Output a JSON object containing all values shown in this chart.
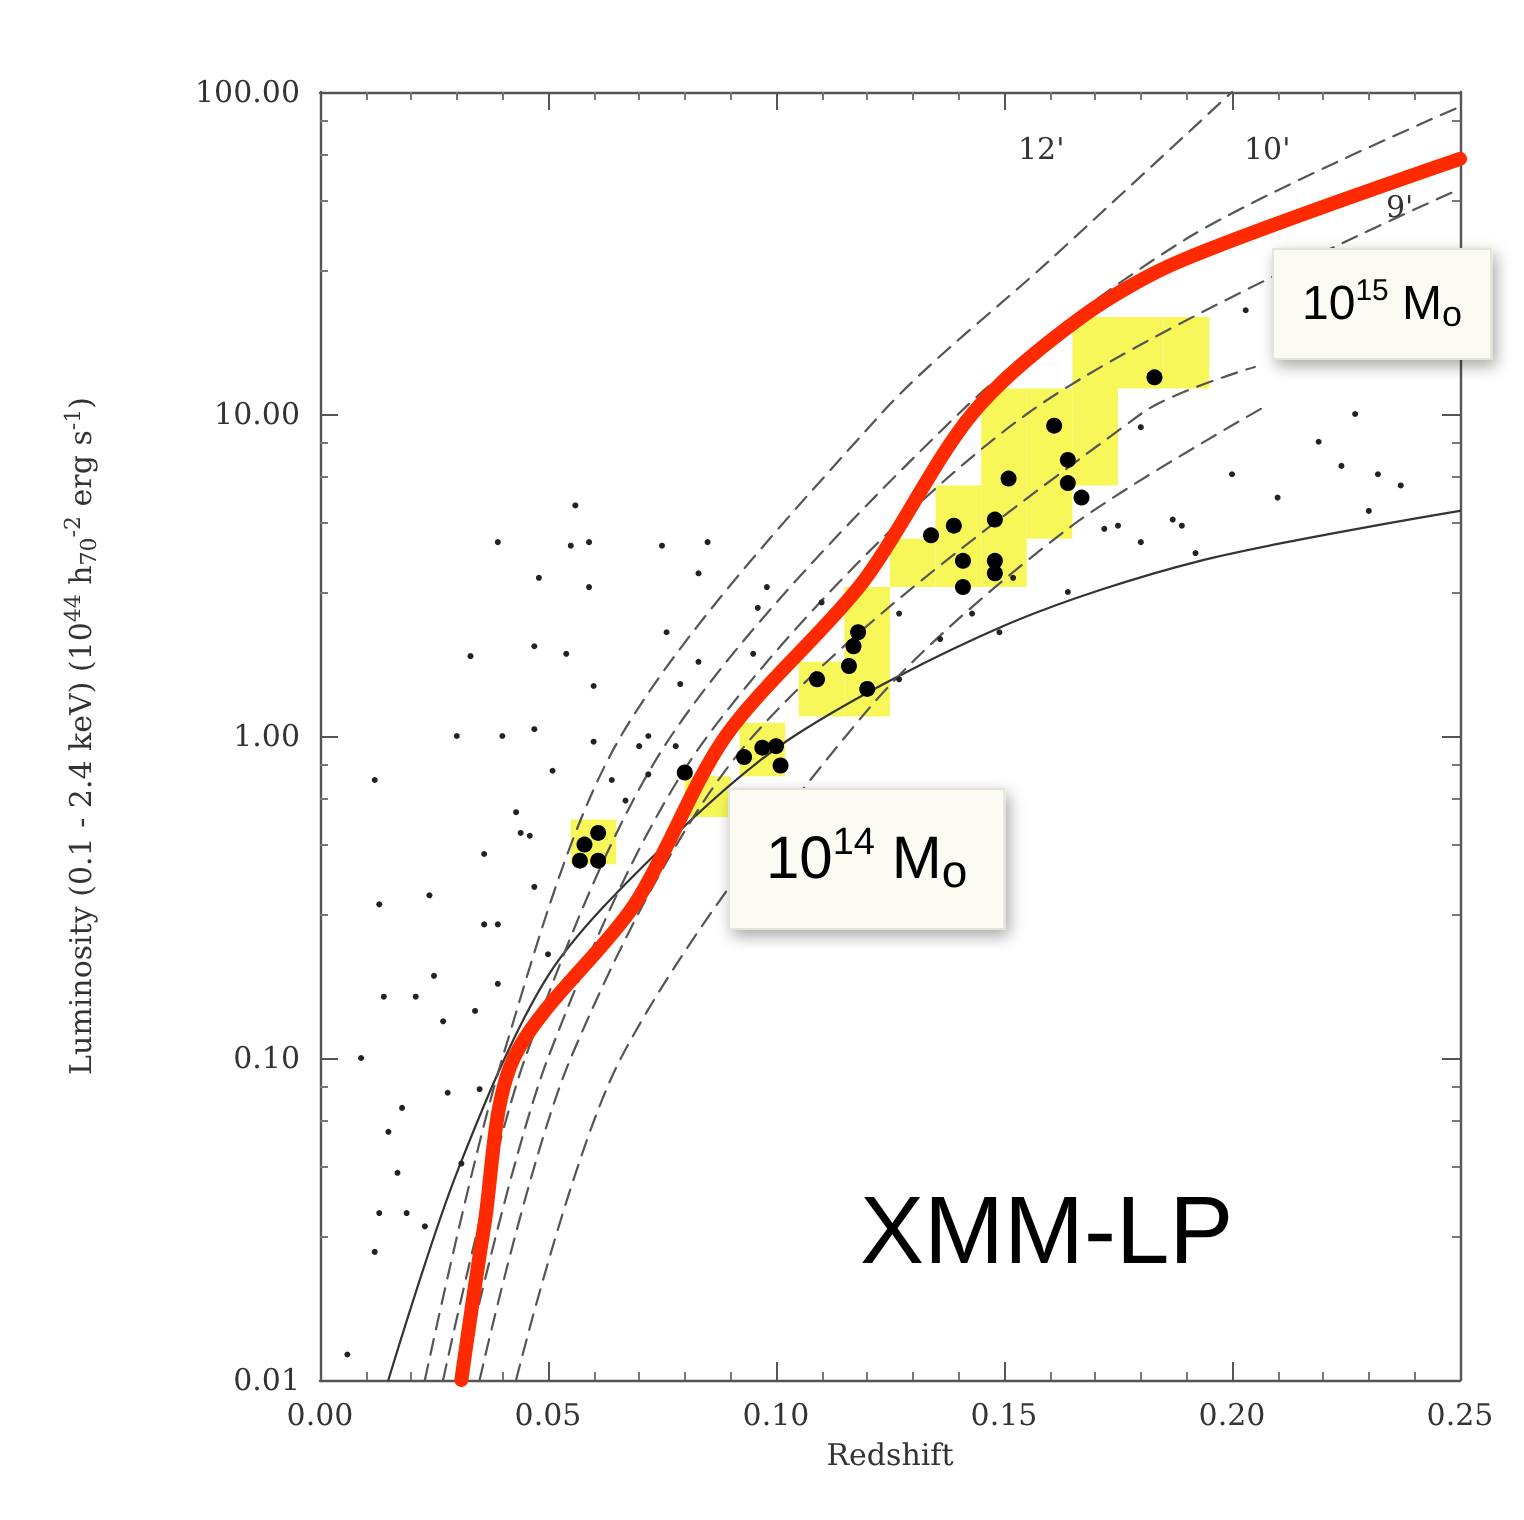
{
  "chart_data": {
    "type": "scatter",
    "xlabel": "Redshift",
    "ylabel": "Luminosity (0.1 - 2.4 keV) (10$^{44}$ h$_{70}$$^{-2}$ erg s$^{-1}$)",
    "log": "y",
    "grid": false,
    "xlim": [
      0,
      0.25
    ],
    "xticks": [
      {
        "value": 0,
        "label": "0.00"
      },
      {
        "value": 0.05,
        "label": "0.05"
      },
      {
        "value": 0.1,
        "label": "0.10"
      },
      {
        "value": 0.15,
        "label": "0.15"
      },
      {
        "value": 0.2,
        "label": "0.20"
      },
      {
        "value": 0.25,
        "label": "0.25"
      }
    ],
    "ylim": [
      0.01,
      100
    ],
    "yticks": [
      {
        "value": 0.01,
        "label": "0.01"
      },
      {
        "value": 0.1,
        "label": "0.10"
      },
      {
        "value": 1,
        "label": "1.00"
      },
      {
        "value": 10,
        "label": "10.00"
      },
      {
        "value": 100,
        "label": "100.00"
      }
    ],
    "series": [
      {
        "type": "bar",
        "color": "#f7f75a",
        "x": [
          0.06,
          0.085,
          0.097,
          0.11,
          0.12,
          0.13,
          0.14,
          0.15,
          0.16,
          0.17,
          0.18,
          0.19
        ],
        "base": [
          0.4,
          0.56,
          0.75,
          1.15,
          1.15,
          2.9,
          2.9,
          2.9,
          4.1,
          6,
          12,
          12
        ],
        "values": [
          0.15,
          0.19,
          0.35,
          0.55,
          1.75,
          1.2,
          3.1,
          9.1,
          7.9,
          14,
          8,
          8
        ]
      },
      {
        "marker": "circle",
        "color": "#222222",
        "x": [
          0.033,
          0.03,
          0.012,
          0.013,
          0.024,
          0.014,
          0.021,
          0.027,
          0.043,
          0.036,
          0.034,
          0.009,
          0.018,
          0.015,
          0.017,
          0.013,
          0.019,
          0.023,
          0.012,
          0.006,
          0.046,
          0.051,
          0.06,
          0.076,
          0.047,
          0.079,
          0.07,
          0.067,
          0.05,
          0.039,
          0.028,
          0.031,
          0.035,
          0.056,
          0.039,
          0.055,
          0.059,
          0.075,
          0.048,
          0.059,
          0.085,
          0.054,
          0.083,
          0.095,
          0.11,
          0.098,
          0.04,
          0.047,
          0.06,
          0.072,
          0.064,
          0.072,
          0.078,
          0.044,
          0.036,
          0.047,
          0.039,
          0.025,
          0.083,
          0.096,
          0.127,
          0.136,
          0.149,
          0.143,
          0.127,
          0.172,
          0.18,
          0.189,
          0.192,
          0.164,
          0.152,
          0.18,
          0.219,
          0.227,
          0.224,
          0.232,
          0.237,
          0.2,
          0.21,
          0.23,
          0.175,
          0.187,
          0.203
        ],
        "values": [
          1.77,
          1.0,
          0.73,
          0.3,
          0.32,
          0.155,
          0.155,
          0.13,
          0.58,
          0.26,
          0.14,
          0.1,
          0.07,
          0.059,
          0.044,
          0.033,
          0.033,
          0.03,
          0.025,
          0.012,
          0.49,
          0.78,
          1.43,
          2.1,
          1.9,
          1.45,
          0.93,
          0.63,
          0.21,
          0.17,
          0.078,
          0.047,
          0.08,
          5.2,
          4.0,
          3.9,
          4.0,
          3.9,
          3.1,
          2.9,
          4.0,
          1.8,
          1.7,
          1.8,
          2.6,
          2.9,
          1.0,
          1.05,
          0.96,
          1.0,
          0.73,
          0.76,
          0.93,
          0.5,
          0.43,
          0.34,
          0.26,
          0.18,
          3.2,
          2.5,
          2.4,
          2.0,
          2.1,
          2.4,
          1.5,
          4.4,
          4.0,
          4.5,
          3.7,
          2.8,
          3.1,
          9.1,
          8.2,
          10,
          6.9,
          6.5,
          6.0,
          6.5,
          5.5,
          5.0,
          4.5,
          4.7,
          21
        ]
      },
      {
        "marker": "circle",
        "color": "#000000",
        "x": [
          0.058,
          0.061,
          0.057,
          0.061,
          0.08,
          0.093,
          0.097,
          0.1,
          0.101,
          0.109,
          0.118,
          0.117,
          0.116,
          0.12,
          0.134,
          0.139,
          0.141,
          0.141,
          0.148,
          0.148,
          0.148,
          0.151,
          0.161,
          0.164,
          0.164,
          0.167,
          0.183
        ],
        "values": [
          0.46,
          0.5,
          0.41,
          0.41,
          0.77,
          0.86,
          0.92,
          0.93,
          0.81,
          1.5,
          2.1,
          1.9,
          1.65,
          1.4,
          4.2,
          4.5,
          3.5,
          2.9,
          4.7,
          3.5,
          3.2,
          6.3,
          9.2,
          7.2,
          6.1,
          5.5,
          13
        ]
      },
      {
        "type": "line",
        "marker": "none",
        "line_style": "solid",
        "color": "#333333",
        "x": [
          0.015,
          0.03,
          0.05,
          0.075,
          0.104,
          0.15,
          0.193,
          0.25
        ],
        "values": [
          0.01,
          0.044,
          0.18,
          0.45,
          1,
          2.2,
          3.5,
          5
        ]
      },
      {
        "type": "line",
        "marker": "none",
        "line_style": "dashed",
        "color": "#555555",
        "x": [
          0.023,
          0.04,
          0.066,
          0.123,
          0.16,
          0.2
        ],
        "values": [
          0.01,
          0.1,
          1,
          10,
          30,
          100
        ]
      },
      {
        "type": "line",
        "marker": "none",
        "line_style": "dashed",
        "color": "#555555",
        "x": [
          0.027,
          0.045,
          0.077,
          0.14,
          0.19,
          0.25
        ],
        "values": [
          0.01,
          0.1,
          1,
          10,
          35,
          90
        ]
      },
      {
        "type": "line",
        "marker": "none",
        "line_style": "dashed",
        "color": "#555555",
        "x": [
          0.031,
          0.05,
          0.085,
          0.155,
          0.25
        ],
        "values": [
          0.01,
          0.1,
          1,
          10,
          50
        ]
      },
      {
        "type": "line",
        "marker": "none",
        "line_style": "dashed",
        "color": "#555555",
        "x": [
          0.035,
          0.055,
          0.095,
          0.18,
          0.205
        ],
        "values": [
          0.01,
          0.1,
          1,
          10,
          14
        ]
      },
      {
        "type": "line",
        "marker": "none",
        "line_style": "dashed",
        "color": "#555555",
        "x": [
          0.043,
          0.066,
          0.12,
          0.164,
          0.208
        ],
        "values": [
          0.01,
          0.1,
          1.2,
          4.4,
          10.7
        ]
      },
      {
        "type": "line",
        "marker": "none",
        "line_style": "solid",
        "color": "#ff2a00",
        "x": [
          0.031,
          0.036,
          0.0425,
          0.069,
          0.089,
          0.119,
          0.143,
          0.167,
          0.189,
          0.25
        ],
        "values": [
          0.01,
          0.03,
          0.1,
          0.3,
          1,
          3,
          10,
          20,
          30,
          62
        ]
      }
    ],
    "annotations": [
      "12'",
      "10'",
      "9'",
      "10$^{15}$ M$_{o}$",
      "10$^{14}$ M$_{o}$",
      "XMM-LP"
    ]
  }
}
